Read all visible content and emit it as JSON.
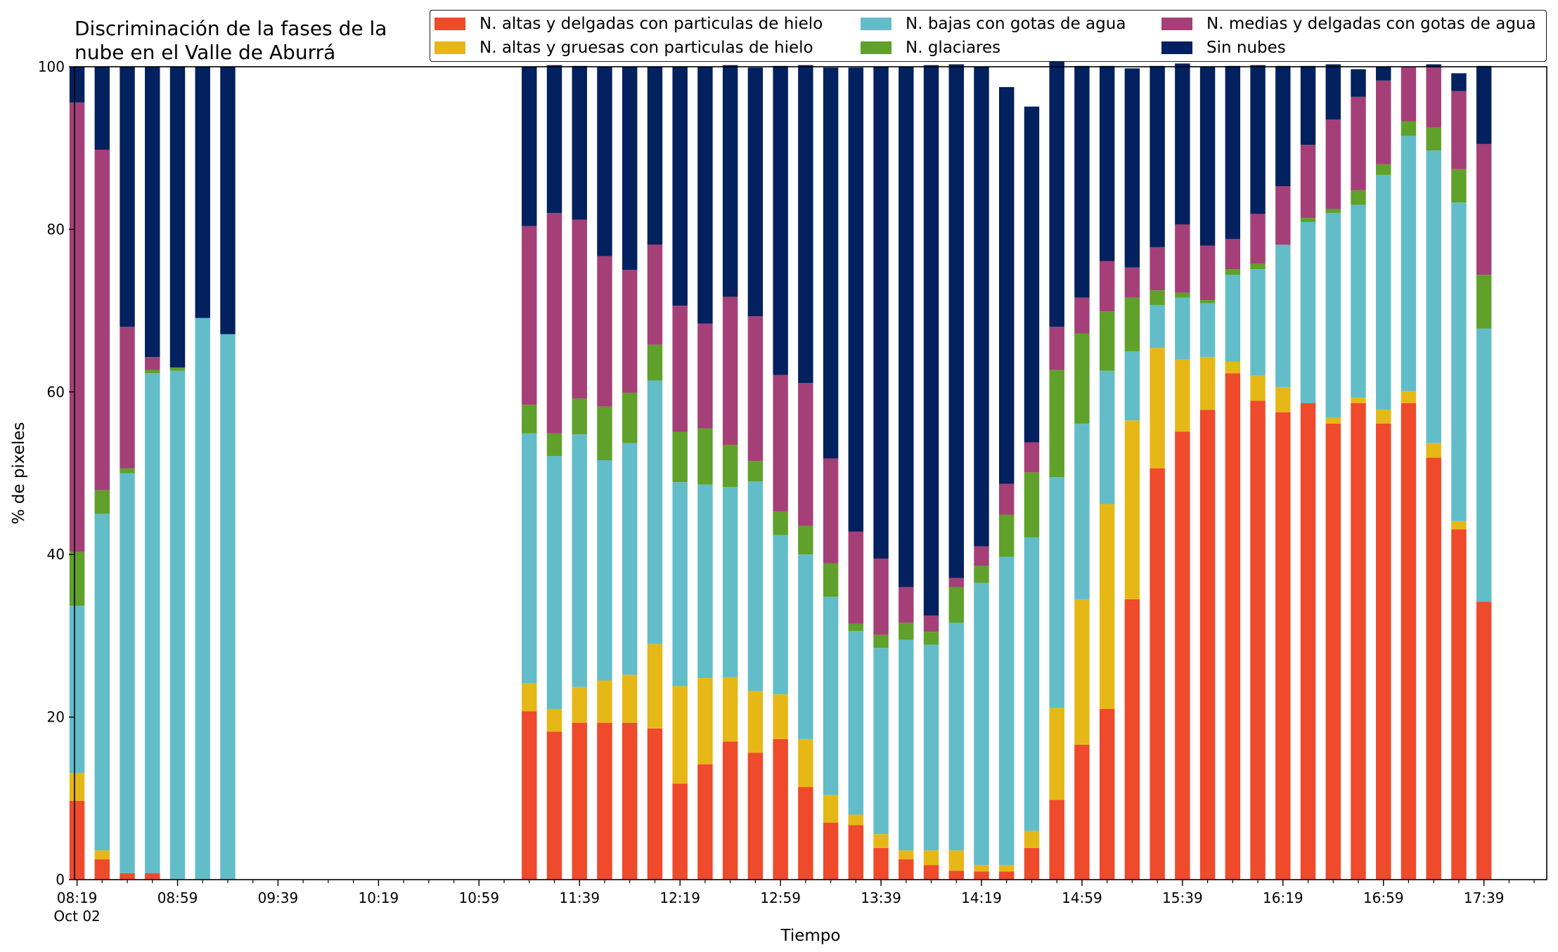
{
  "chart_data": {
    "type": "bar",
    "stacked": true,
    "title": "Discriminación de la fases de la\nnube en el Valle de Aburrá",
    "xlabel": "Tiempo",
    "ylabel": "% de pixeles",
    "ylim": [
      0,
      100
    ],
    "yticks": [
      0,
      20,
      40,
      60,
      80,
      100
    ],
    "xticks": [
      {
        "label": "08:19",
        "sublabel": "Oct 02",
        "minutes": 0
      },
      {
        "label": "08:59",
        "minutes": 40
      },
      {
        "label": "09:39",
        "minutes": 80
      },
      {
        "label": "10:19",
        "minutes": 120
      },
      {
        "label": "10:59",
        "minutes": 160
      },
      {
        "label": "11:39",
        "minutes": 200
      },
      {
        "label": "12:19",
        "minutes": 240
      },
      {
        "label": "12:59",
        "minutes": 280
      },
      {
        "label": "13:39",
        "minutes": 320
      },
      {
        "label": "14:19",
        "minutes": 360
      },
      {
        "label": "14:59",
        "minutes": 400
      },
      {
        "label": "15:39",
        "minutes": 440
      },
      {
        "label": "16:19",
        "minutes": 480
      },
      {
        "label": "16:59",
        "minutes": 520
      },
      {
        "label": "17:39",
        "minutes": 560
      }
    ],
    "xlim_minutes": [
      -1,
      585
    ],
    "minor_tick_step_minutes": 10,
    "legend_position": "top-right",
    "x_minutes": [
      0,
      10,
      20,
      30,
      40,
      50,
      60,
      180,
      190,
      200,
      210,
      220,
      230,
      240,
      250,
      260,
      270,
      280,
      290,
      300,
      310,
      320,
      330,
      340,
      350,
      360,
      370,
      380,
      390,
      400,
      410,
      420,
      430,
      440,
      450,
      460,
      470,
      480,
      490,
      500,
      510,
      520,
      530,
      540,
      550,
      560,
      570
    ],
    "series": [
      {
        "name": "N. altas y delgadas con particulas de hielo",
        "color": "#ee4a2b",
        "values": [
          9.7,
          2.5,
          0.8,
          0.8,
          0,
          0,
          0,
          20.7,
          18.2,
          19.3,
          19.3,
          19.3,
          18.6,
          11.8,
          14.2,
          17,
          15.6,
          17.3,
          11.4,
          7,
          6.7,
          3.9,
          2.5,
          1.8,
          1.1,
          1,
          1,
          3.9,
          9.8,
          16.6,
          21,
          34.5,
          50.6,
          55.1,
          57.8,
          62.3,
          58.9,
          57.5,
          58.6,
          56.1,
          58.6,
          56.1,
          58.6,
          51.9,
          43.1,
          34.2,
          0
        ]
      },
      {
        "name": "N. altas y gruesas con particulas de hielo",
        "color": "#e6b817",
        "values": [
          3.4,
          1.1,
          0,
          0,
          0,
          0,
          0,
          3.5,
          2.8,
          4.4,
          5.2,
          5.9,
          10.4,
          12,
          10.6,
          7.9,
          7.6,
          5.5,
          5.9,
          3.4,
          1.3,
          1.7,
          1.1,
          1.8,
          2.5,
          0.8,
          0.8,
          2.1,
          11.3,
          17.9,
          25.2,
          22,
          14.8,
          8.9,
          6.5,
          1.4,
          3.1,
          3.1,
          0,
          0.7,
          0.7,
          1.7,
          1.5,
          1.8,
          1,
          0,
          0
        ]
      },
      {
        "name": "N. bajas con gotas de agua",
        "color": "#62bdc9",
        "values": [
          20.6,
          41.4,
          49.2,
          61.5,
          62.6,
          69.1,
          67.1,
          30.7,
          31.1,
          31.1,
          27.1,
          28.5,
          32.4,
          25.1,
          23.8,
          23.4,
          25.8,
          19.6,
          22.7,
          24.4,
          22.6,
          22.9,
          25.9,
          25.3,
          28,
          34.7,
          37.9,
          36.1,
          28.4,
          21.6,
          16.4,
          8.5,
          5.3,
          7.6,
          6.6,
          10.7,
          13.1,
          17.5,
          22.3,
          25.2,
          23.7,
          28.9,
          31.4,
          36,
          39.2,
          33.6,
          0
        ]
      },
      {
        "name": "N. glaciares",
        "color": "#5fa12a",
        "values": [
          6.6,
          2.9,
          0.6,
          0.4,
          0.4,
          0,
          0,
          3.5,
          2.8,
          4.4,
          6.6,
          6.2,
          4.4,
          6.2,
          6.9,
          5.2,
          2.5,
          2.9,
          3.5,
          4.1,
          0.9,
          1.6,
          2.1,
          1.6,
          4.4,
          2.1,
          5.2,
          8,
          13.2,
          11.1,
          7.3,
          6.6,
          1.8,
          0.6,
          0.4,
          0.7,
          0.7,
          0,
          0.5,
          0.5,
          1.8,
          1.3,
          1.8,
          2.8,
          4.1,
          6.6,
          0
        ]
      },
      {
        "name": "N. medias y delgadas con gotas de agua",
        "color": "#a44077",
        "values": [
          55.3,
          41.9,
          17.4,
          1.6,
          0,
          0,
          0,
          22,
          27.1,
          22,
          18.5,
          15.1,
          12.3,
          15.5,
          12.9,
          18.2,
          17.8,
          16.8,
          17.6,
          12.9,
          11.3,
          9.4,
          4.4,
          2,
          1.1,
          2.4,
          3.8,
          3.7,
          5.3,
          4.4,
          6.2,
          3.7,
          5.3,
          8.4,
          6.7,
          3.7,
          6.1,
          7.2,
          9,
          11,
          11.5,
          10.3,
          6.7,
          7.5,
          9.6,
          16.1,
          0
        ]
      },
      {
        "name": "Sin nubes",
        "color": "#03215e",
        "values": [
          4.4,
          10.2,
          32,
          35.7,
          37,
          30.9,
          32.9,
          19.6,
          18.2,
          18.9,
          23.3,
          25,
          21.9,
          29.4,
          31.6,
          28.5,
          30.6,
          38,
          39.1,
          48.1,
          57.1,
          60.5,
          64,
          67.7,
          63.2,
          59,
          48.8,
          41.3,
          34,
          28.5,
          24,
          24.5,
          22.3,
          19.8,
          22,
          21.3,
          18.3,
          14.8,
          9.7,
          6.8,
          3.4,
          1.7,
          0,
          0.3,
          2.2,
          9.6,
          0
        ]
      }
    ]
  }
}
